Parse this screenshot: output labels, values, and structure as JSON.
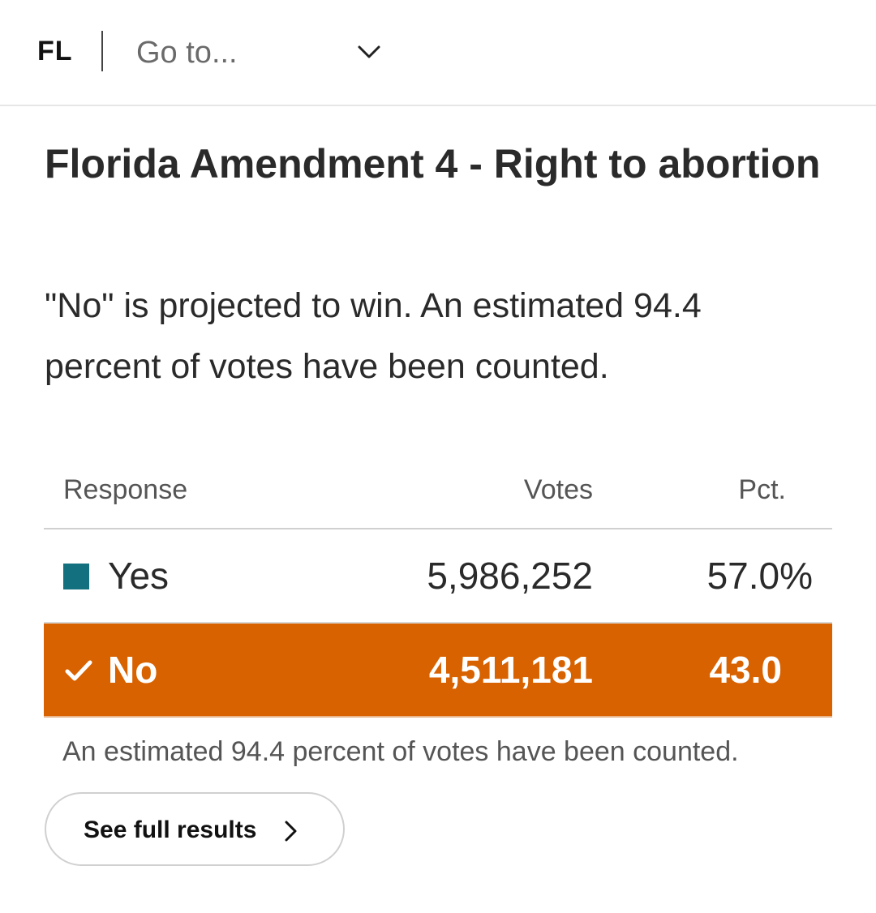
{
  "header": {
    "state_code": "FL",
    "goto_placeholder": "Go to..."
  },
  "race": {
    "title": "Florida Amendment 4 - Right to abortion",
    "summary": "\"No\" is projected to win. An estimated 94.4 percent of votes have been counted."
  },
  "table": {
    "columns": {
      "response": "Response",
      "votes": "Votes",
      "pct": "Pct."
    },
    "rows": [
      {
        "response": "Yes",
        "votes": "5,986,252",
        "pct": "57.0%",
        "winner": false,
        "color": "#13707e"
      },
      {
        "response": "No",
        "votes": "4,511,181",
        "pct": "43.0",
        "winner": true,
        "color": "#d86200"
      }
    ]
  },
  "footnote": "An estimated 94.4 percent of votes have been counted.",
  "actions": {
    "full_results_label": "See full results"
  },
  "icons": {
    "dropdown": "chevron-down-icon",
    "winner": "check-icon",
    "button": "chevron-right-icon"
  }
}
